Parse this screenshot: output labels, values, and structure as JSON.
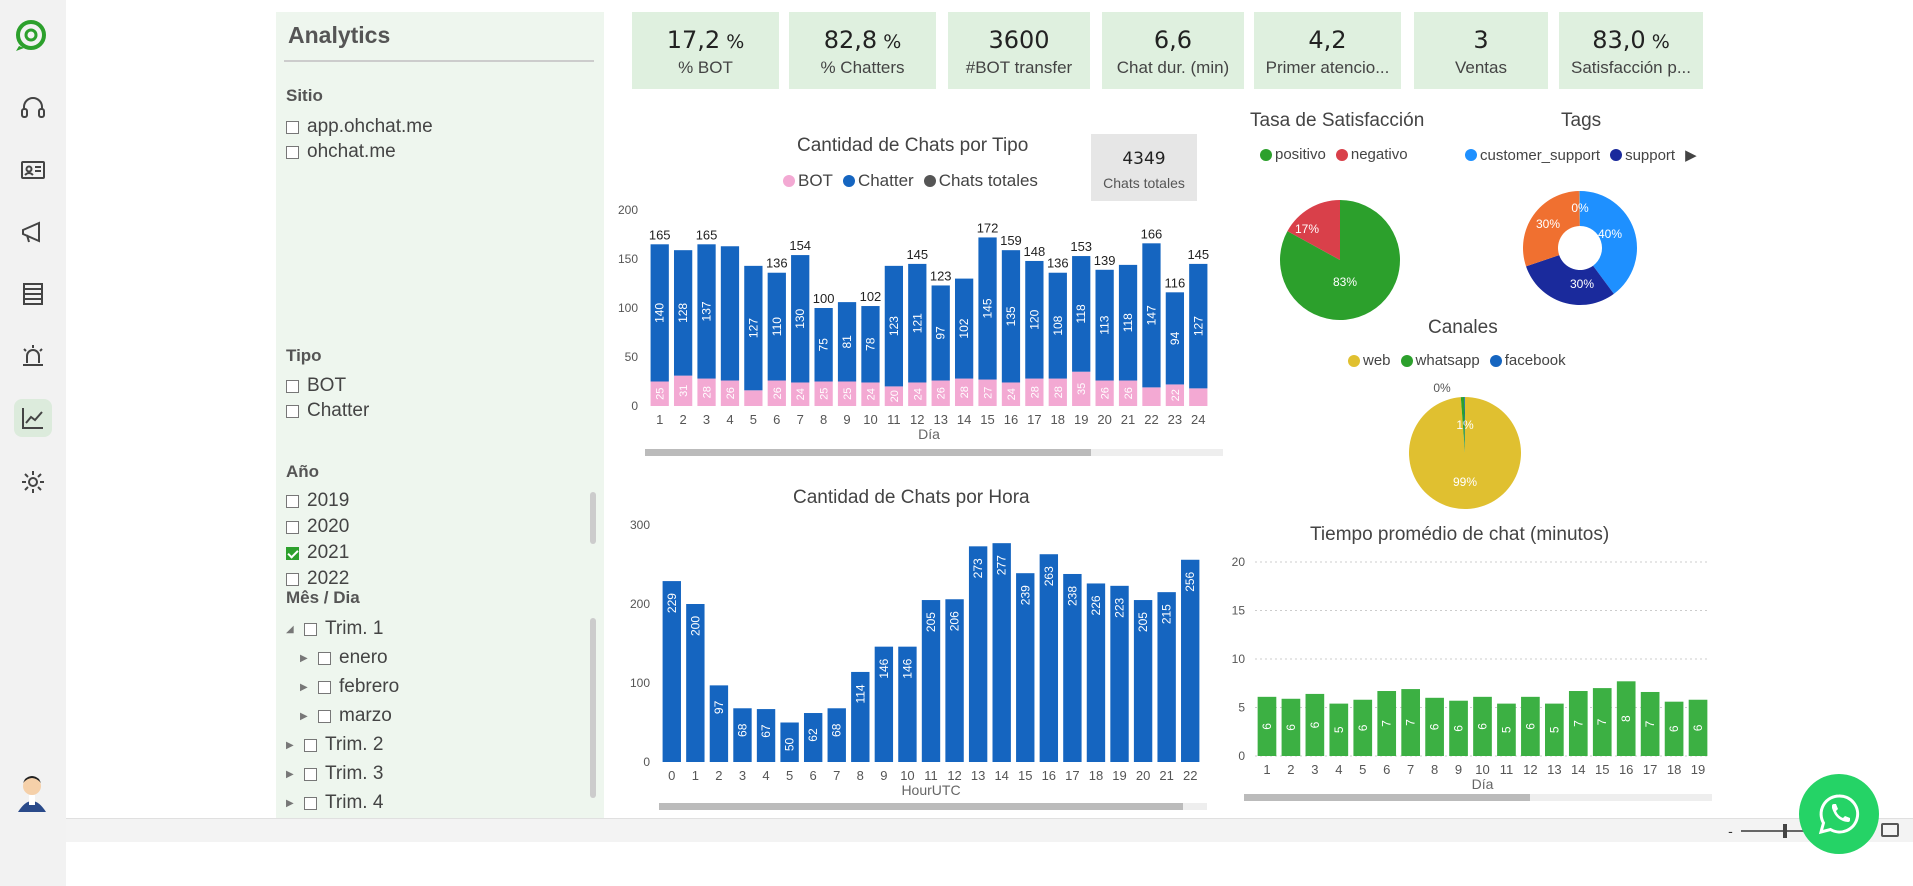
{
  "colors": {
    "accent": "#2ca02c",
    "blue": "#1565c0",
    "pink": "#f3a9d3",
    "gray": "#555555",
    "green_bar": "#3cb043",
    "kpi_bg": "#dff0df",
    "panel_bg": "#eef6ee"
  },
  "nav": {
    "items": [
      {
        "name": "headset-icon"
      },
      {
        "name": "contact-card-icon"
      },
      {
        "name": "megaphone-icon"
      },
      {
        "name": "list-icon"
      },
      {
        "name": "alarm-icon"
      },
      {
        "name": "chart-icon",
        "active": true
      },
      {
        "name": "gear-icon"
      }
    ]
  },
  "filters": {
    "title": "Analytics",
    "sitio": {
      "title": "Sitio",
      "options": [
        "app.ohchat.me",
        "ohchat.me"
      ]
    },
    "tipo": {
      "title": "Tipo",
      "options": [
        "BOT",
        "Chatter"
      ]
    },
    "anio": {
      "title": "Año",
      "options": [
        "2019",
        "2020",
        "2021",
        "2022"
      ],
      "checked": "2021"
    },
    "mes": {
      "title": "Mês / Dia",
      "items": [
        "Trim. 1",
        "enero",
        "febrero",
        "marzo",
        "Trim. 2",
        "Trim. 3",
        "Trim. 4"
      ]
    }
  },
  "kpis": [
    {
      "value": "17,2",
      "unit": "%",
      "label": "% BOT"
    },
    {
      "value": "82,8",
      "unit": "%",
      "label": "% Chatters"
    },
    {
      "value": "3600",
      "unit": "",
      "label": "#BOT transfer"
    },
    {
      "value": "6,6",
      "unit": "",
      "label": "Chat dur. (min)"
    },
    {
      "value": "4,2",
      "unit": "",
      "label": "Primer atencio..."
    },
    {
      "value": "3",
      "unit": "",
      "label": "Ventas"
    },
    {
      "value": "83,0",
      "unit": "%",
      "label": "Satisfacción p..."
    }
  ],
  "card": {
    "value": "4349",
    "label": "Chats totales"
  },
  "legends": {
    "tipo": [
      "BOT",
      "Chatter",
      "Chats totales"
    ],
    "satisf": [
      "positivo",
      "negativo"
    ],
    "tags": [
      "customer_support",
      "support"
    ],
    "canales": [
      "web",
      "whatsapp",
      "facebook"
    ]
  },
  "zoom": {
    "minus": "-",
    "plus": "+"
  },
  "chart_data": [
    {
      "type": "bar",
      "title": "Cantidad de Chats por Tipo",
      "xlabel": "Día",
      "ylabel": "",
      "ylim": [
        0,
        200
      ],
      "yticks": [
        0,
        50,
        100,
        150,
        200
      ],
      "categories": [
        "1",
        "2",
        "3",
        "4",
        "5",
        "6",
        "7",
        "8",
        "9",
        "10",
        "11",
        "12",
        "13",
        "14",
        "15",
        "16",
        "17",
        "18",
        "19",
        "20",
        "21",
        "22",
        "23",
        "24"
      ],
      "series": [
        {
          "name": "BOT",
          "values": [
            25,
            31,
            28,
            26,
            16,
            26,
            24,
            25,
            25,
            24,
            20,
            24,
            26,
            28,
            27,
            24,
            28,
            28,
            35,
            26,
            26,
            19,
            22,
            18
          ],
          "labels": [
            "25",
            "31",
            "28",
            "26",
            "",
            "26",
            "24",
            "25",
            "25",
            "24",
            "20",
            "24",
            "26",
            "28",
            "27",
            "24",
            "28",
            "28",
            "35",
            "26",
            "26",
            "",
            "22",
            ""
          ]
        },
        {
          "name": "Chatter",
          "values": [
            140,
            128,
            137,
            137,
            127,
            110,
            130,
            75,
            81,
            78,
            123,
            121,
            97,
            102,
            145,
            135,
            120,
            108,
            118,
            113,
            118,
            147,
            94,
            127
          ],
          "labels": [
            "140",
            "128",
            "137",
            "",
            "127",
            "110",
            "130",
            "75",
            "81",
            "78",
            "123",
            "121",
            "97",
            "102",
            "145",
            "135",
            "120",
            "108",
            "118",
            "113",
            "118",
            "147",
            "94",
            "127"
          ]
        },
        {
          "name": "Chats totales",
          "values": [
            165,
            159,
            165,
            163,
            143,
            136,
            154,
            100,
            106,
            102,
            143,
            145,
            123,
            130,
            172,
            159,
            148,
            136,
            153,
            139,
            144,
            166,
            116,
            145
          ],
          "labels": [
            "165",
            "",
            "165",
            "",
            "",
            "136",
            "154",
            "100",
            "",
            "102",
            "",
            "145",
            "123",
            "",
            "172",
            "159",
            "148",
            "136",
            "153",
            "139",
            "",
            "166",
            "116",
            "145"
          ]
        }
      ]
    },
    {
      "type": "bar",
      "title": "Cantidad de Chats por Hora",
      "xlabel": "HourUTC",
      "ylabel": "",
      "ylim": [
        0,
        300
      ],
      "yticks": [
        0,
        100,
        200,
        300
      ],
      "categories": [
        "0",
        "1",
        "2",
        "3",
        "4",
        "5",
        "6",
        "7",
        "8",
        "9",
        "10",
        "11",
        "12",
        "13",
        "14",
        "15",
        "16",
        "17",
        "18",
        "19",
        "20",
        "21",
        "22"
      ],
      "values": [
        229,
        200,
        97,
        68,
        67,
        50,
        62,
        68,
        114,
        146,
        146,
        205,
        206,
        273,
        277,
        239,
        263,
        238,
        226,
        223,
        205,
        215,
        256
      ]
    },
    {
      "type": "bar",
      "title": "Tiempo promédio de chat (minutos)",
      "xlabel": "Día",
      "ylabel": "",
      "ylim": [
        0,
        20
      ],
      "yticks": [
        0,
        5,
        10,
        15,
        20
      ],
      "categories": [
        "1",
        "2",
        "3",
        "4",
        "5",
        "6",
        "7",
        "8",
        "9",
        "10",
        "11",
        "12",
        "13",
        "14",
        "15",
        "16",
        "17",
        "18",
        "19"
      ],
      "values": [
        6.1,
        5.9,
        6.4,
        5.4,
        5.8,
        6.7,
        6.9,
        6.0,
        5.7,
        6.1,
        5.4,
        6.1,
        5.4,
        6.7,
        7.0,
        7.7,
        6.6,
        5.6,
        5.8
      ],
      "labels": [
        "6",
        "6",
        "6",
        "5",
        "6",
        "7",
        "7",
        "6",
        "6",
        "6",
        "5",
        "6",
        "5",
        "7",
        "7",
        "8",
        "7",
        "6",
        "6"
      ]
    },
    {
      "type": "pie",
      "title": "Tasa de Satisfacción",
      "slices": [
        {
          "name": "positivo",
          "value": 83,
          "label": "83%",
          "color": "#2ca02c"
        },
        {
          "name": "negativo",
          "value": 17,
          "label": "17%",
          "color": "#d9404a"
        }
      ]
    },
    {
      "type": "pie",
      "title": "Tags",
      "donut": true,
      "slices": [
        {
          "name": "customer_support",
          "value": 40,
          "label": "40%",
          "color": "#1e90ff"
        },
        {
          "name": "support",
          "value": 30,
          "label": "30%",
          "color": "#1a2a9c"
        },
        {
          "name": "",
          "value": 30,
          "label": "30%",
          "color": "#f07030"
        },
        {
          "name": "",
          "value": 0.3,
          "label": "0%",
          "color": "#999999"
        }
      ]
    },
    {
      "type": "pie",
      "title": "Canales",
      "slices": [
        {
          "name": "web",
          "value": 99,
          "label": "99%",
          "color": "#e0c030"
        },
        {
          "name": "whatsapp",
          "value": 1,
          "label": "1%",
          "color": "#2ca02c"
        },
        {
          "name": "facebook",
          "value": 0.2,
          "label": "0%",
          "color": "#1565c0"
        }
      ]
    }
  ]
}
